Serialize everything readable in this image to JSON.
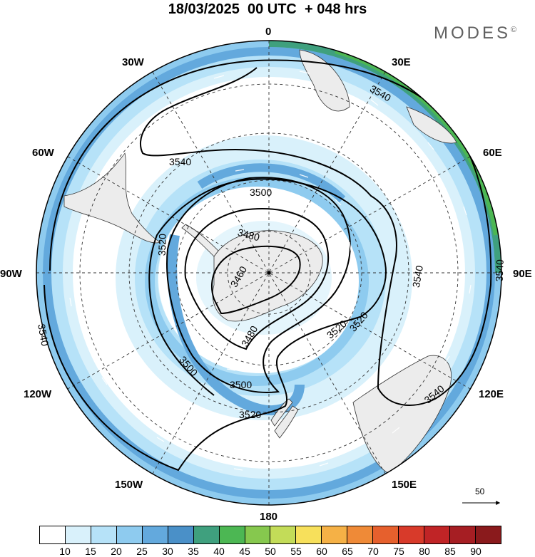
{
  "title": "18/03/2025  00 UTC  + 048 hrs",
  "brand": "MODES",
  "brand_mark": "©",
  "longitude_labels": {
    "lon_0": "0",
    "lon_30e": "30E",
    "lon_60e": "60E",
    "lon_90e": "90E",
    "lon_120e": "120E",
    "lon_150e": "150E",
    "lon_180": "180",
    "lon_150w": "150W",
    "lon_120w": "120W",
    "lon_90w": "90W",
    "lon_60w": "60W",
    "lon_30w": "30W"
  },
  "contour_labels": [
    "3540",
    "3540",
    "3540",
    "3540",
    "3540",
    "3500",
    "3480",
    "3460",
    "3520",
    "3480",
    "3500",
    "3500",
    "3520",
    "3520",
    "3520",
    "3540"
  ],
  "reference_vector": "50",
  "colorbar": {
    "levels": [
      "10",
      "15",
      "20",
      "25",
      "30",
      "35",
      "40",
      "45",
      "50",
      "55",
      "60",
      "65",
      "70",
      "75",
      "80",
      "85",
      "90"
    ],
    "colors": [
      "#ffffff",
      "#d9f1fb",
      "#b6e2f8",
      "#8ecbef",
      "#63a9dd",
      "#4a90c8",
      "#3fa07e",
      "#4cb753",
      "#86c84e",
      "#c3dc58",
      "#f7e05b",
      "#f5b146",
      "#ef8a37",
      "#e6602d",
      "#d83a2a",
      "#c02426",
      "#a61e23",
      "#8a1a1c"
    ]
  },
  "colors": {
    "land": "#ececec",
    "background": "#ffffff",
    "contour": "#000000",
    "grid": "#333333"
  }
}
